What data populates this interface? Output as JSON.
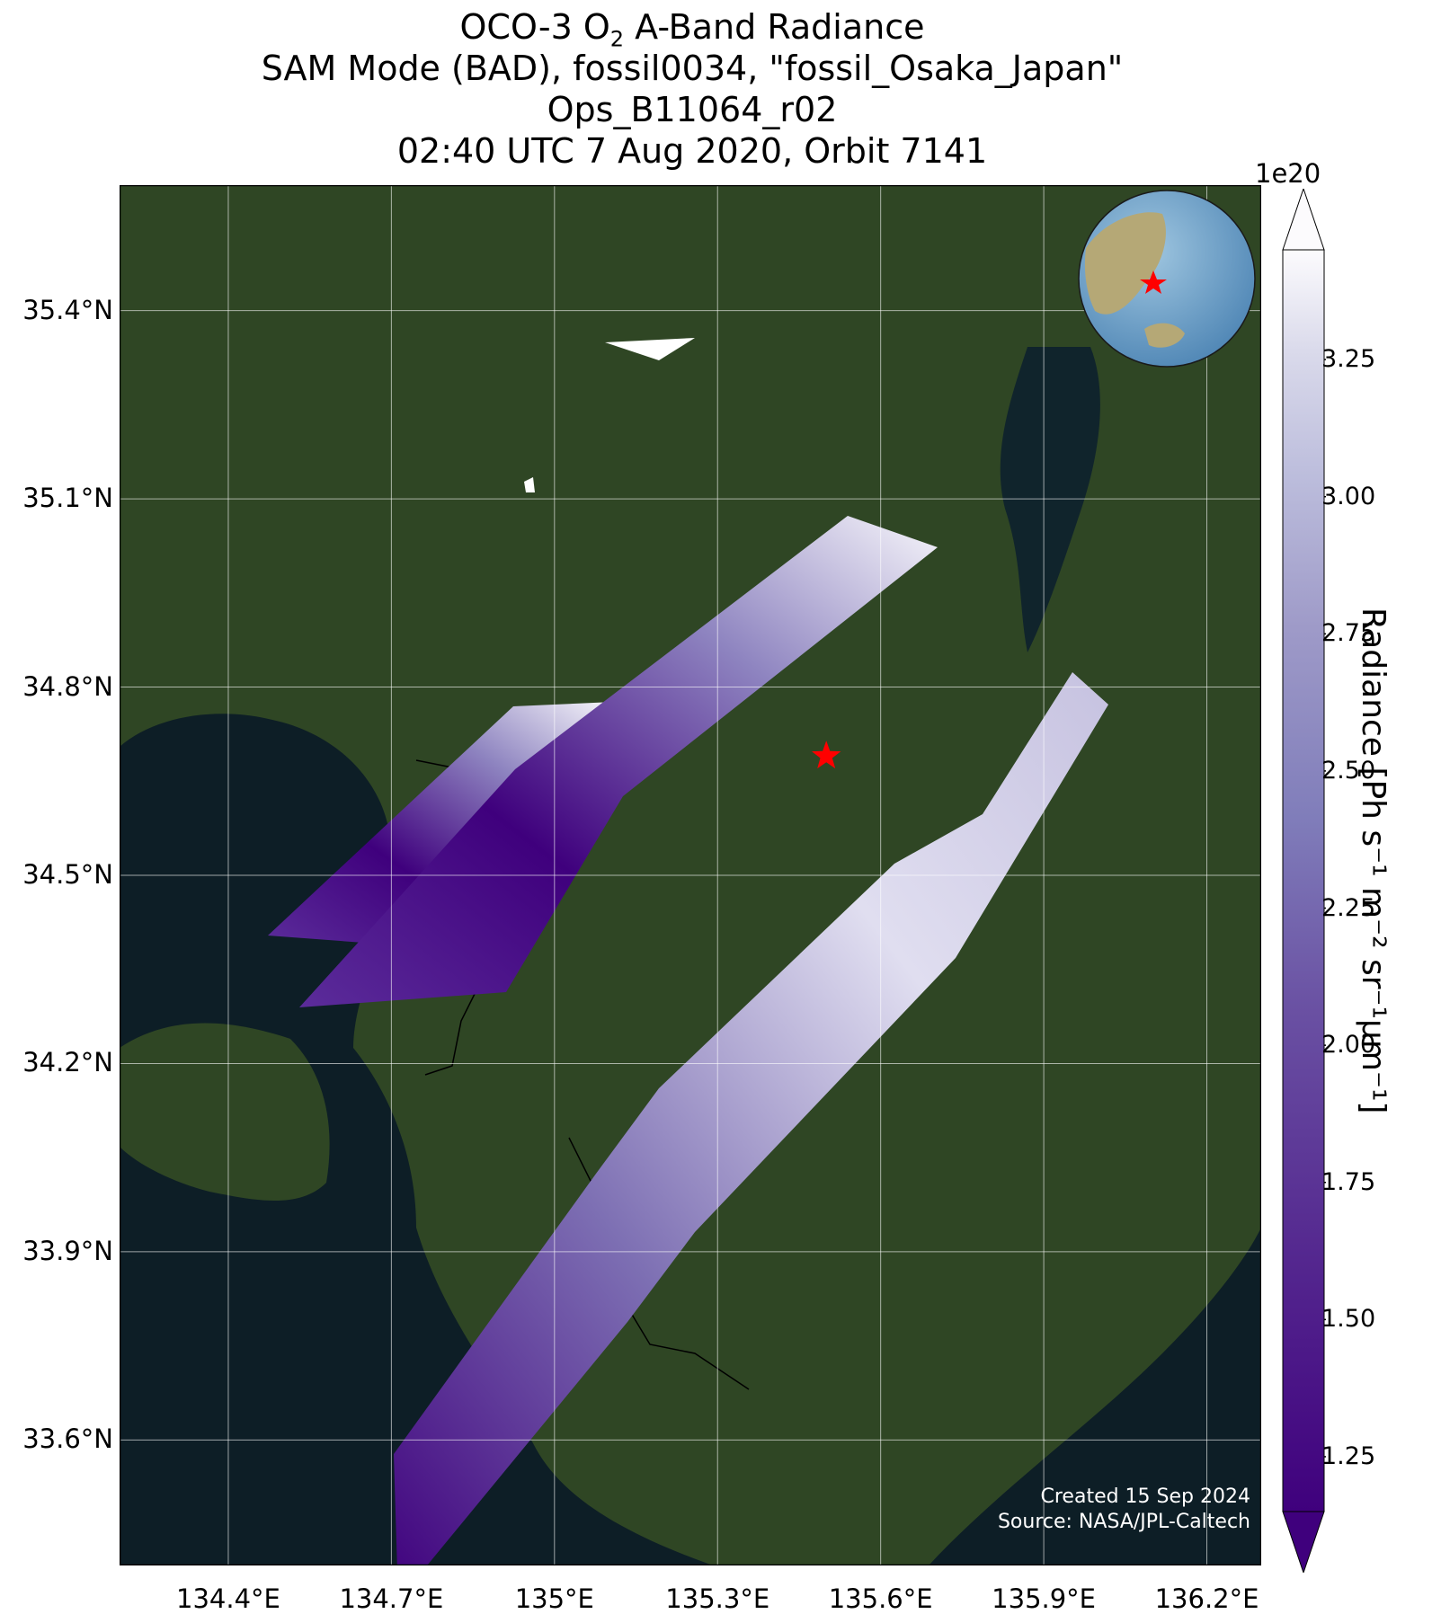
{
  "title": {
    "line1_prefix": "OCO-3 O",
    "line1_sub": "2",
    "line1_suffix": " A-Band Radiance",
    "line2": "SAM Mode (BAD), fossil0034, \"fossil_Osaka_Japan\"",
    "line3": "Ops_B11064_r02",
    "line4": "02:40 UTC 7 Aug 2020, Orbit 7141"
  },
  "map": {
    "lon_range": [
      134.2,
      136.3
    ],
    "lat_range": [
      33.4,
      35.6
    ],
    "lat_ticks": [
      "35.4°N",
      "35.1°N",
      "34.8°N",
      "34.5°N",
      "34.2°N",
      "33.9°N",
      "33.6°N"
    ],
    "lat_tick_values": [
      35.4,
      35.1,
      34.8,
      34.5,
      34.2,
      33.9,
      33.6
    ],
    "lon_ticks": [
      "134.4°E",
      "134.7°E",
      "135°E",
      "135.3°E",
      "135.6°E",
      "135.9°E",
      "136.2°E"
    ],
    "lon_tick_values": [
      134.4,
      134.7,
      135.0,
      135.3,
      135.6,
      135.9,
      136.2
    ],
    "grid": true,
    "target_marker": {
      "lon": 135.5,
      "lat": 34.69,
      "color": "#ff0000",
      "shape": "star"
    },
    "inset": "globe-with-target-location",
    "colors": {
      "land": "#2f4624",
      "water": "#0d1e26",
      "swath_low": "#3f007d",
      "swath_high": "#fcfbfd",
      "marker": "#ff0000"
    }
  },
  "colorbar": {
    "exponent": "1e20",
    "min": 1.15,
    "max": 3.45,
    "ticks": [
      "1.25",
      "1.50",
      "1.75",
      "2.00",
      "2.25",
      "2.50",
      "2.75",
      "3.00",
      "3.25"
    ],
    "tick_values": [
      1.25,
      1.5,
      1.75,
      2.0,
      2.25,
      2.5,
      2.75,
      3.0,
      3.25
    ],
    "label": "Radiance [Ph s⁻¹ m⁻² sr⁻¹μm⁻¹]",
    "colormap": "Purples_r",
    "extend": "both"
  },
  "credits": {
    "created": "Created 15 Sep 2024",
    "source": "Source: NASA/JPL-Caltech"
  }
}
